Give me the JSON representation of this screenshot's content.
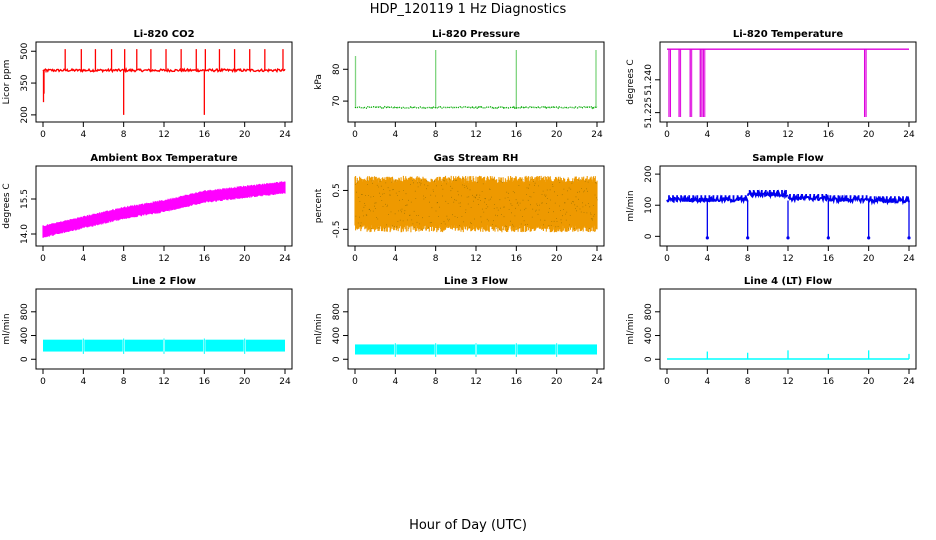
{
  "page": {
    "title": "HDP_120119  1 Hz Diagnostics",
    "xlabel": "Hour of Day (UTC)"
  },
  "chart_data": [
    {
      "id": "co2",
      "type": "line",
      "title": "Li-820 CO2",
      "xlabel": "",
      "ylabel": "Licor ppm",
      "color": "#ff0000",
      "xlim": [
        0,
        24
      ],
      "ylim": [
        190,
        520
      ],
      "xticks": [
        "0",
        "4",
        "8",
        "12",
        "16",
        "20",
        "24"
      ],
      "yticks": [
        "200",
        "350",
        "500"
      ],
      "baseline": 410,
      "noise": 6,
      "pattern": "spikes",
      "events": [
        {
          "x": 0.05,
          "y": 260
        },
        {
          "x": 0.1,
          "y": 300
        },
        {
          "x": 0.3,
          "y": 400
        },
        {
          "x": 2.2,
          "y": 510
        },
        {
          "x": 3.8,
          "y": 510
        },
        {
          "x": 5.2,
          "y": 510
        },
        {
          "x": 6.8,
          "y": 510
        },
        {
          "x": 8.0,
          "y": 200
        },
        {
          "x": 8.1,
          "y": 510
        },
        {
          "x": 9.3,
          "y": 510
        },
        {
          "x": 10.7,
          "y": 510
        },
        {
          "x": 12.2,
          "y": 510
        },
        {
          "x": 13.7,
          "y": 510
        },
        {
          "x": 15.2,
          "y": 510
        },
        {
          "x": 16.0,
          "y": 200
        },
        {
          "x": 16.1,
          "y": 510
        },
        {
          "x": 17.5,
          "y": 510
        },
        {
          "x": 19.0,
          "y": 510
        },
        {
          "x": 20.5,
          "y": 510
        },
        {
          "x": 22.0,
          "y": 510
        },
        {
          "x": 23.8,
          "y": 510
        }
      ]
    },
    {
      "id": "pressure",
      "type": "line",
      "title": "Li-820 Pressure",
      "xlabel": "",
      "ylabel": "kPa",
      "color": "#00aa00",
      "dotted": true,
      "xlim": [
        0,
        24
      ],
      "ylim": [
        65,
        87
      ],
      "xticks": [
        "0",
        "4",
        "8",
        "12",
        "16",
        "20",
        "24"
      ],
      "yticks": [
        "70",
        "80"
      ],
      "baseline": 68.0,
      "noise": 0.2,
      "pattern": "spikes",
      "events": [
        {
          "x": 0.05,
          "y": 84
        },
        {
          "x": 8.0,
          "y": 86
        },
        {
          "x": 16.0,
          "y": 86
        },
        {
          "x": 23.9,
          "y": 86
        }
      ]
    },
    {
      "id": "temperature",
      "type": "line",
      "title": "Li-820 Temperature",
      "xlabel": "",
      "ylabel": "degrees C",
      "color": "#dd00dd",
      "xlim": [
        0,
        24
      ],
      "ylim": [
        51.223,
        51.255
      ],
      "xticks": [
        "0",
        "4",
        "8",
        "12",
        "16",
        "20",
        "24"
      ],
      "yticks": [
        "51.225",
        "51.240"
      ],
      "baseline": 51.254,
      "noise": 0,
      "pattern": "drops",
      "events": [
        {
          "x": 0.2,
          "y": 51.223
        },
        {
          "x": 1.2,
          "y": 51.223
        },
        {
          "x": 2.3,
          "y": 51.223
        },
        {
          "x": 3.3,
          "y": 51.223
        },
        {
          "x": 3.6,
          "y": 51.223
        },
        {
          "x": 19.6,
          "y": 51.223
        }
      ]
    },
    {
      "id": "boxtemp",
      "type": "line",
      "title": "Ambient Box Temperature",
      "xlabel": "",
      "ylabel": "degrees C",
      "color": "#ff00ff",
      "xlim": [
        0,
        24
      ],
      "ylim": [
        13.7,
        16.7
      ],
      "xticks": [
        "0",
        "4",
        "8",
        "12",
        "16",
        "20",
        "24"
      ],
      "yticks": [
        "14.0",
        "15.5"
      ],
      "pattern": "band",
      "trend_x": [
        0,
        4,
        8,
        12,
        16,
        20,
        24
      ],
      "trend_y": [
        14.1,
        14.5,
        14.9,
        15.2,
        15.6,
        15.8,
        16.0
      ],
      "amp": 0.55
    },
    {
      "id": "rh",
      "type": "line",
      "title": "Gas Stream RH",
      "xlabel": "",
      "ylabel": "percent",
      "color": "#ee9900",
      "xlim": [
        0,
        24
      ],
      "ylim": [
        -0.8,
        1.0
      ],
      "xticks": [
        "0",
        "4",
        "8",
        "12",
        "16",
        "20",
        "24"
      ],
      "yticks": [
        "-0.5",
        "0.5"
      ],
      "pattern": "band",
      "trend_x": [
        0,
        24
      ],
      "trend_y": [
        0.15,
        0.15
      ],
      "amp": 1.45
    },
    {
      "id": "sampleflow",
      "type": "line",
      "title": "Sample Flow",
      "xlabel": "",
      "ylabel": "ml/min",
      "color": "#0000ee",
      "xlim": [
        0,
        24
      ],
      "ylim": [
        -15,
        210
      ],
      "xticks": [
        "0",
        "4",
        "8",
        "12",
        "16",
        "20",
        "24"
      ],
      "yticks": [
        "0",
        "100",
        "200"
      ],
      "pattern": "steps",
      "segments": [
        {
          "x0": 0,
          "x1": 4,
          "y": 118
        },
        {
          "x0": 4,
          "x1": 8,
          "y": 118
        },
        {
          "x0": 8,
          "x1": 12,
          "y": 135
        },
        {
          "x0": 12,
          "x1": 16,
          "y": 122
        },
        {
          "x0": 16,
          "x1": 20,
          "y": 118
        },
        {
          "x0": 20,
          "x1": 24,
          "y": 115
        }
      ],
      "events": [
        {
          "x": 4.0,
          "y": -5
        },
        {
          "x": 8.0,
          "y": -5
        },
        {
          "x": 12.0,
          "y": -5
        },
        {
          "x": 16.0,
          "y": -5
        },
        {
          "x": 20.0,
          "y": -5
        },
        {
          "x": 24.0,
          "y": -5
        }
      ]
    },
    {
      "id": "line2",
      "type": "line",
      "title": "Line 2 Flow",
      "xlabel": "",
      "ylabel": "ml/min",
      "color": "#00ffff",
      "xlim": [
        0,
        24
      ],
      "ylim": [
        -80,
        1100
      ],
      "xticks": [
        "0",
        "4",
        "8",
        "12",
        "16",
        "20",
        "24"
      ],
      "yticks": [
        "0",
        "400",
        "800"
      ],
      "pattern": "blocks",
      "segments": [
        {
          "x0": 0,
          "x1": 3.9,
          "lo": 130,
          "hi": 330
        },
        {
          "x0": 4.1,
          "x1": 7.9,
          "lo": 130,
          "hi": 330
        },
        {
          "x0": 8.1,
          "x1": 11.9,
          "lo": 130,
          "hi": 330
        },
        {
          "x0": 12.1,
          "x1": 15.9,
          "lo": 130,
          "hi": 330
        },
        {
          "x0": 16.1,
          "x1": 19.9,
          "lo": 130,
          "hi": 330
        },
        {
          "x0": 20.1,
          "x1": 24,
          "lo": 130,
          "hi": 330
        }
      ]
    },
    {
      "id": "line3",
      "type": "line",
      "title": "Line 3 Flow",
      "xlabel": "",
      "ylabel": "ml/min",
      "color": "#00ffff",
      "xlim": [
        0,
        24
      ],
      "ylim": [
        -80,
        1100
      ],
      "xticks": [
        "0",
        "4",
        "8",
        "12",
        "16",
        "20",
        "24"
      ],
      "yticks": [
        "0",
        "400",
        "800"
      ],
      "pattern": "blocks",
      "segments": [
        {
          "x0": 0,
          "x1": 3.9,
          "lo": 80,
          "hi": 250
        },
        {
          "x0": 4.1,
          "x1": 7.9,
          "lo": 80,
          "hi": 250
        },
        {
          "x0": 8.1,
          "x1": 11.9,
          "lo": 80,
          "hi": 250
        },
        {
          "x0": 12.1,
          "x1": 15.9,
          "lo": 80,
          "hi": 250
        },
        {
          "x0": 16.1,
          "x1": 19.9,
          "lo": 80,
          "hi": 250
        },
        {
          "x0": 20.1,
          "x1": 24,
          "lo": 80,
          "hi": 250
        }
      ]
    },
    {
      "id": "line4",
      "type": "line",
      "title": "Line 4 (LT) Flow",
      "xlabel": "",
      "ylabel": "ml/min",
      "color": "#00ffff",
      "xlim": [
        0,
        24
      ],
      "ylim": [
        -80,
        1100
      ],
      "xticks": [
        "0",
        "4",
        "8",
        "12",
        "16",
        "20",
        "24"
      ],
      "yticks": [
        "0",
        "400",
        "800"
      ],
      "baseline": 5,
      "noise": 0,
      "pattern": "spikes",
      "events": [
        {
          "x": 4.0,
          "y": 130
        },
        {
          "x": 8.0,
          "y": 110
        },
        {
          "x": 12.0,
          "y": 150
        },
        {
          "x": 16.0,
          "y": 90
        },
        {
          "x": 20.0,
          "y": 150
        },
        {
          "x": 24.0,
          "y": 90
        }
      ]
    }
  ]
}
